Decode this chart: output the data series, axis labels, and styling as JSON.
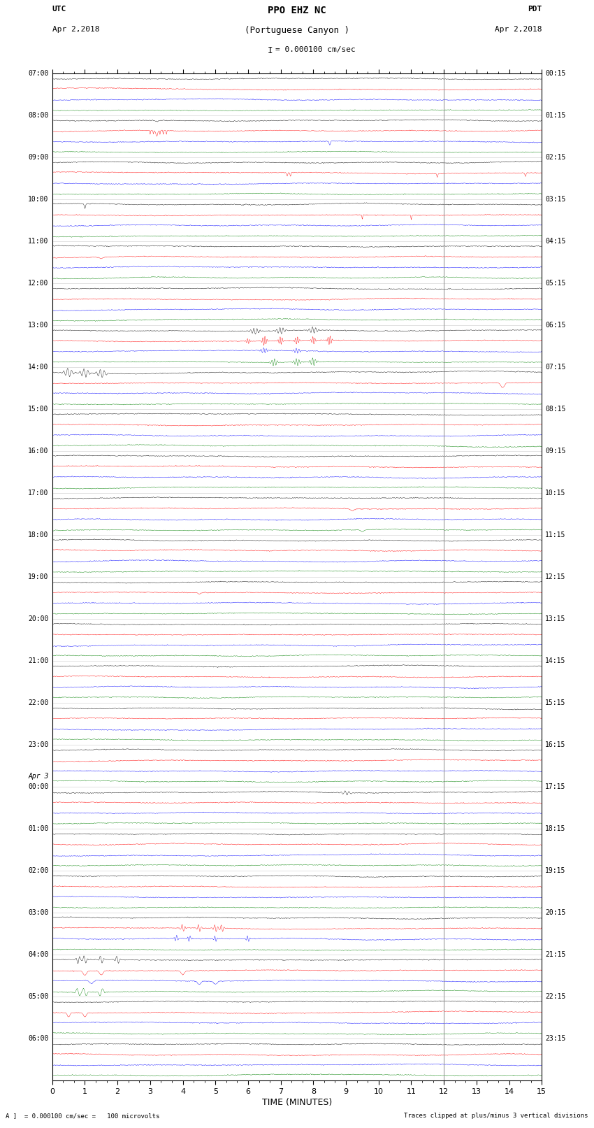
{
  "title_line1": "PPO EHZ NC",
  "title_line2": "(Portuguese Canyon )",
  "scale_text": "= 0.000100 cm/sec",
  "utc_label": "UTC",
  "utc_date": "Apr 2,2018",
  "pdt_label": "PDT",
  "pdt_date": "Apr 2,2018",
  "xlabel": "TIME (MINUTES)",
  "footer_scale": "= 0.000100 cm/sec =   100 microvolts",
  "footer_right": "Traces clipped at plus/minus 3 vertical divisions",
  "xlim": [
    0,
    15
  ],
  "xticks": [
    0,
    1,
    2,
    3,
    4,
    5,
    6,
    7,
    8,
    9,
    10,
    11,
    12,
    13,
    14,
    15
  ],
  "trace_colors": [
    "black",
    "red",
    "blue",
    "green"
  ],
  "fig_width": 8.5,
  "fig_height": 16.13,
  "dpi": 100,
  "left_labels": [
    [
      "07:00",
      0
    ],
    [
      "08:00",
      4
    ],
    [
      "09:00",
      8
    ],
    [
      "10:00",
      12
    ],
    [
      "11:00",
      16
    ],
    [
      "12:00",
      20
    ],
    [
      "13:00",
      24
    ],
    [
      "14:00",
      28
    ],
    [
      "15:00",
      32
    ],
    [
      "16:00",
      36
    ],
    [
      "17:00",
      40
    ],
    [
      "18:00",
      44
    ],
    [
      "19:00",
      48
    ],
    [
      "20:00",
      52
    ],
    [
      "21:00",
      56
    ],
    [
      "22:00",
      60
    ],
    [
      "23:00",
      64
    ],
    [
      "Apr 3",
      67
    ],
    [
      "00:00",
      68
    ],
    [
      "01:00",
      72
    ],
    [
      "02:00",
      76
    ],
    [
      "03:00",
      80
    ],
    [
      "04:00",
      84
    ],
    [
      "05:00",
      88
    ],
    [
      "06:00",
      92
    ]
  ],
  "right_labels": [
    [
      "00:15",
      0
    ],
    [
      "01:15",
      4
    ],
    [
      "02:15",
      8
    ],
    [
      "03:15",
      12
    ],
    [
      "04:15",
      16
    ],
    [
      "05:15",
      20
    ],
    [
      "06:15",
      24
    ],
    [
      "07:15",
      28
    ],
    [
      "08:15",
      32
    ],
    [
      "09:15",
      36
    ],
    [
      "10:15",
      40
    ],
    [
      "11:15",
      44
    ],
    [
      "12:15",
      48
    ],
    [
      "13:15",
      52
    ],
    [
      "14:15",
      56
    ],
    [
      "15:15",
      60
    ],
    [
      "16:15",
      64
    ],
    [
      "17:15",
      68
    ],
    [
      "18:15",
      72
    ],
    [
      "19:15",
      76
    ],
    [
      "20:15",
      80
    ],
    [
      "21:15",
      84
    ],
    [
      "22:15",
      88
    ],
    [
      "23:15",
      92
    ]
  ],
  "num_rows": 96,
  "noise_base": 0.08,
  "vline_x": 12,
  "vline_color": "#888888"
}
